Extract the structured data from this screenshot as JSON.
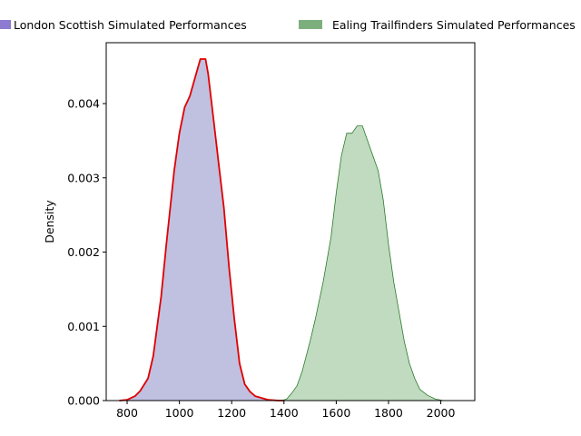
{
  "chart_data": {
    "type": "area",
    "title": "",
    "xlabel": "",
    "ylabel": "Density",
    "xlim": [
      720,
      2130
    ],
    "ylim": [
      0,
      0.00482
    ],
    "x_ticks": [
      800,
      1000,
      1200,
      1400,
      1600,
      1800,
      2000
    ],
    "x_tick_labels": [
      "800",
      "1000",
      "1200",
      "1400",
      "1600",
      "1800",
      "2000"
    ],
    "y_ticks": [
      0,
      0.001,
      0.002,
      0.003,
      0.004
    ],
    "y_tick_labels": [
      "0.000",
      "0.001",
      "0.002",
      "0.003",
      "0.004"
    ],
    "grid": false,
    "legend_position": "top, above plot",
    "series": [
      {
        "name": "London Scottish Simulated Performances",
        "fill_color": "#c0c0e0",
        "line_color": "#e00000",
        "legend_color": "#8c7bd0",
        "x": [
          770,
          800,
          830,
          850,
          880,
          900,
          930,
          950,
          980,
          1000,
          1020,
          1040,
          1060,
          1080,
          1090,
          1100,
          1110,
          1130,
          1150,
          1170,
          1190,
          1210,
          1230,
          1250,
          1270,
          1290,
          1310,
          1340,
          1380,
          1400
        ],
        "y": [
          0.0,
          1e-05,
          6e-05,
          0.00013,
          0.0003,
          0.0006,
          0.0014,
          0.0021,
          0.0031,
          0.0036,
          0.00395,
          0.0041,
          0.00435,
          0.0046,
          0.0046,
          0.0046,
          0.0044,
          0.0038,
          0.0032,
          0.0026,
          0.0018,
          0.0011,
          0.0005,
          0.00022,
          0.00012,
          6e-05,
          4e-05,
          1e-05,
          0.0,
          0.0
        ]
      },
      {
        "name": "Ealing Trailfinders Simulated Performances",
        "fill_color": "#c0dbc0",
        "line_color": "#2a7a2a",
        "legend_color": "#7daf7d",
        "x": [
          1390,
          1410,
          1430,
          1450,
          1470,
          1500,
          1520,
          1550,
          1580,
          1600,
          1620,
          1640,
          1660,
          1680,
          1700,
          1720,
          1740,
          1760,
          1780,
          1800,
          1820,
          1840,
          1860,
          1880,
          1900,
          1920,
          1950,
          1980,
          2010
        ],
        "y": [
          0.0,
          2e-05,
          0.0001,
          0.0002,
          0.0004,
          0.0008,
          0.0011,
          0.0016,
          0.0022,
          0.0028,
          0.0033,
          0.0036,
          0.0036,
          0.0037,
          0.0037,
          0.0035,
          0.0033,
          0.0031,
          0.0027,
          0.0021,
          0.0016,
          0.0012,
          0.0008,
          0.0005,
          0.0003,
          0.00015,
          7e-05,
          2e-05,
          0.0
        ]
      }
    ]
  }
}
